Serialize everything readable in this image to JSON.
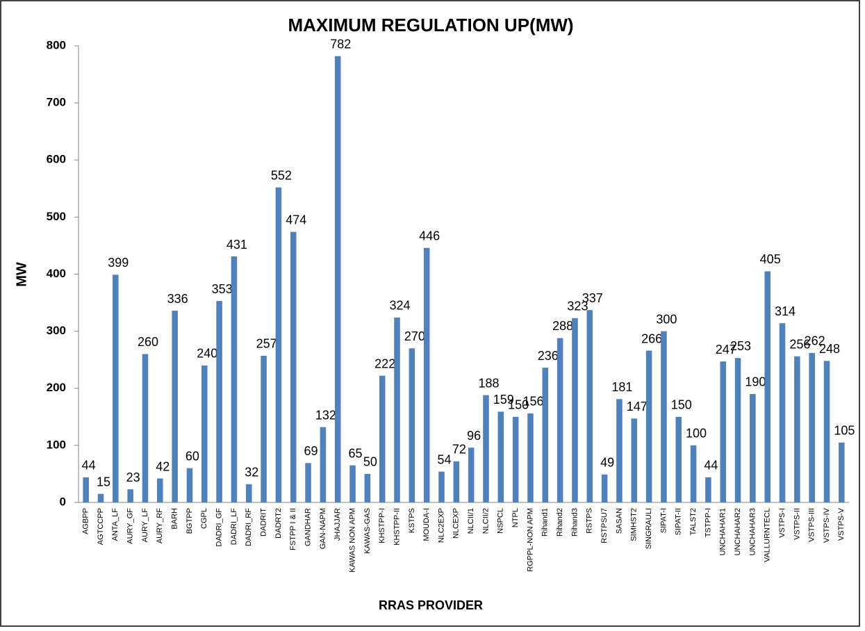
{
  "chart_data": {
    "type": "bar",
    "title": "MAXIMUM REGULATION UP(MW)",
    "x_label": "RRAS PROVIDER",
    "y_label": "MW",
    "categories": [
      "AGBPP",
      "AGTCCPP",
      "ANTA_LF",
      "AURY_GF",
      "AURY_LF",
      "AURY_RF",
      "BARH",
      "BGTPP",
      "CGPL",
      "DADRI_GF",
      "DADRI_LF",
      "DADRI_RF",
      "DADRIT",
      "DADRT2",
      "FSTPP I & II",
      "GANDHAR",
      "GAN-NAPM",
      "JHAJJAR",
      "KAWAS NON APM",
      "KAWAS-GAS",
      "KHSTPP-I",
      "KHSTPP-II",
      "KSTPS",
      "MOUDA-I",
      "NLC2EXP",
      "NLCEXP",
      "NLCII/1",
      "NLCII/2",
      "NSPCL",
      "NTPL",
      "RGPPL-NON APM",
      "Rihand1",
      "Rihand2",
      "Rihand3",
      "RSTPS",
      "RSTPSU7",
      "SASAN",
      "SIMHST2",
      "SINGRAULI",
      "SIPAT-I",
      "SIPAT-II",
      "TALST2",
      "TSTPP-I",
      "UNCHAHAR1",
      "UNCHAHAR2",
      "UNCHAHAR3",
      "VALLURNTECL",
      "VSTPS-I",
      "VSTPS-II",
      "VSTPS-III",
      "VSTPS-IV",
      "VSTPS-V"
    ],
    "values": [
      44,
      15,
      399,
      23,
      260,
      42,
      336,
      60,
      240,
      353,
      431,
      32,
      257,
      552,
      474,
      69,
      132,
      782,
      65,
      50,
      222,
      324,
      270,
      446,
      54,
      72,
      96,
      188,
      159,
      150,
      156,
      236,
      288,
      323,
      337,
      49,
      181,
      147,
      266,
      300,
      150,
      100,
      44,
      247,
      253,
      190,
      405,
      314,
      256,
      262,
      248,
      105
    ],
    "color": "#4f81bd",
    "ylim": [
      0,
      800
    ],
    "yticks": [
      0,
      100,
      200,
      300,
      400,
      500,
      600,
      700,
      800
    ],
    "grid": false
  }
}
